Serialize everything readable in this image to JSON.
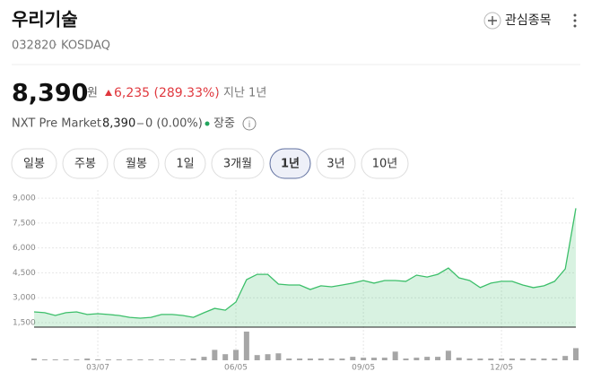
{
  "header": {
    "title": "우리기술",
    "code": "032820",
    "market": "KOSDAQ",
    "watchlist": "관심종목"
  },
  "price": {
    "value": "8,390",
    "unit": "원",
    "change": "6,235 (289.33%)",
    "period": "지난 1년"
  },
  "nxt": {
    "label": "NXT Pre Market",
    "price": "8,390",
    "change": "0 (0.00%)",
    "status": "장중"
  },
  "tabs": [
    "일봉",
    "주봉",
    "월봉",
    "1일",
    "3개월",
    "1년",
    "3년",
    "10년"
  ],
  "selected_tab": 5,
  "chart": {
    "type": "area",
    "color": "#3cbf6a",
    "categories": [
      null,
      null,
      null,
      null,
      null,
      null,
      "03/07",
      null,
      null,
      null,
      null,
      null,
      null,
      null,
      null,
      null,
      null,
      null,
      null,
      "06/05",
      null,
      null,
      null,
      null,
      null,
      null,
      null,
      null,
      null,
      null,
      null,
      "09/05",
      null,
      null,
      null,
      null,
      null,
      null,
      null,
      null,
      null,
      null,
      null,
      null,
      "12/05",
      null,
      null,
      null,
      null,
      null,
      null,
      null
    ],
    "values": [
      2150,
      2100,
      1930,
      2100,
      2150,
      1990,
      2040,
      1990,
      1930,
      1820,
      1770,
      1820,
      1990,
      1990,
      1930,
      1820,
      2100,
      2360,
      2250,
      2740,
      4090,
      4410,
      4410,
      3820,
      3770,
      3770,
      3500,
      3720,
      3660,
      3770,
      3880,
      4040,
      3880,
      4040,
      4040,
      3990,
      4360,
      4250,
      4410,
      4790,
      4200,
      4040,
      3610,
      3880,
      3990,
      3990,
      3770,
      3610,
      3720,
      3990,
      4740,
      8390
    ],
    "volumes": [
      2,
      1,
      1,
      1,
      1,
      2,
      1,
      1,
      1,
      1,
      1,
      1,
      1,
      1,
      1,
      2,
      4,
      12,
      7,
      12,
      33,
      6,
      7,
      8,
      2,
      2,
      2,
      2,
      2,
      2,
      4,
      3,
      3,
      3,
      10,
      2,
      3,
      4,
      4,
      11,
      3,
      2,
      2,
      2,
      2,
      2,
      2,
      2,
      2,
      2,
      5,
      14
    ],
    "ylim": [
      1230,
      9490
    ],
    "yticks": [
      {
        "value": 1500,
        "label": "1,500"
      },
      {
        "value": 3000,
        "label": "3,000"
      },
      {
        "value": 4500,
        "label": "4,500"
      },
      {
        "value": 6000,
        "label": "6,000"
      },
      {
        "value": 7500,
        "label": "7,500"
      },
      {
        "value": 9000,
        "label": "9,000"
      }
    ],
    "grid": true
  }
}
